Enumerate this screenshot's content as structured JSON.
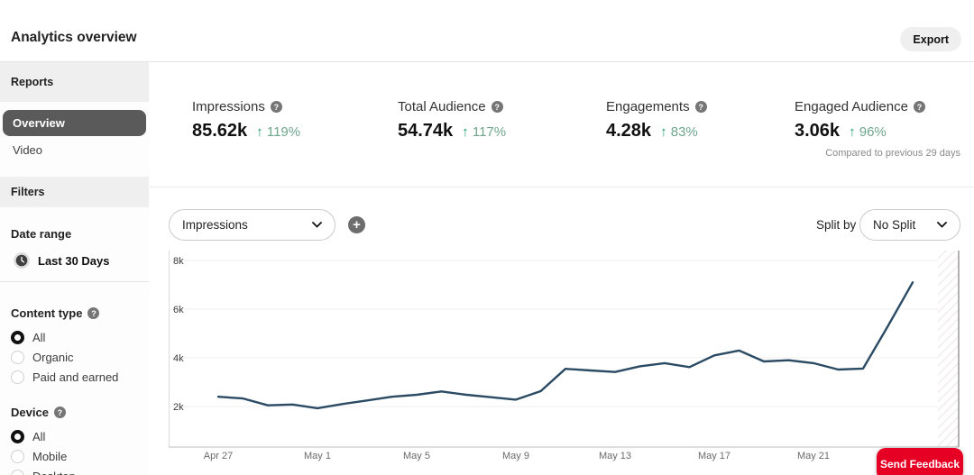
{
  "header": {
    "title": "Analytics overview",
    "export_label": "Export"
  },
  "sidebar": {
    "reports_header": "Reports",
    "report_items": [
      {
        "label": "Overview",
        "selected": true
      },
      {
        "label": "Video",
        "selected": false
      }
    ],
    "filters_header": "Filters",
    "date_range": {
      "label": "Date range",
      "value": "Last 30 Days"
    },
    "content_type": {
      "label": "Content type",
      "options": [
        {
          "label": "All",
          "selected": true
        },
        {
          "label": "Organic",
          "selected": false
        },
        {
          "label": "Paid and earned",
          "selected": false
        }
      ]
    },
    "device": {
      "label": "Device",
      "options": [
        {
          "label": "All",
          "selected": true
        },
        {
          "label": "Mobile",
          "selected": false
        },
        {
          "label": "Desktop",
          "selected": false,
          "partially_visible": true
        }
      ]
    }
  },
  "metrics": {
    "cards": [
      {
        "label": "Impressions",
        "value": "85.62k",
        "change": "119%"
      },
      {
        "label": "Total Audience",
        "value": "54.74k",
        "change": "117%"
      },
      {
        "label": "Engagements",
        "value": "4.28k",
        "change": "83%"
      },
      {
        "label": "Engaged Audience",
        "value": "3.06k",
        "change": "96%"
      }
    ],
    "comparison_note": "Compared to previous 29 days"
  },
  "controls": {
    "metric_select_value": "Impressions",
    "add_metric": "+",
    "split_by_label": "Split by",
    "split_select_value": "No Split"
  },
  "feedback_button": "Send Feedback",
  "colors": {
    "accent_red": "#e60023",
    "positive_green_arrow": "#1d9d74",
    "positive_green_text": "#6fa68c",
    "selected_pill_gray": "#5a5a5a"
  },
  "chart_data": {
    "type": "line",
    "series_name": "Impressions",
    "x": [
      "Apr 27",
      "Apr 28",
      "Apr 29",
      "Apr 30",
      "May 1",
      "May 2",
      "May 3",
      "May 4",
      "May 5",
      "May 6",
      "May 7",
      "May 8",
      "May 9",
      "May 10",
      "May 11",
      "May 12",
      "May 13",
      "May 14",
      "May 15",
      "May 16",
      "May 17",
      "May 18",
      "May 19",
      "May 20",
      "May 21",
      "May 22",
      "May 23",
      "May 24",
      "May 25"
    ],
    "values": [
      2400,
      2330,
      2050,
      2080,
      1930,
      2100,
      2250,
      2400,
      2480,
      2620,
      2480,
      2380,
      2280,
      2630,
      3550,
      3480,
      3420,
      3650,
      3780,
      3620,
      4100,
      4300,
      3850,
      3900,
      3780,
      3520,
      3560,
      5300,
      7100
    ],
    "x_tick_labels": [
      "Apr 27",
      "May 1",
      "May 5",
      "May 9",
      "May 13",
      "May 17",
      "May 21"
    ],
    "x_tick_indices": [
      0,
      4,
      8,
      12,
      16,
      20,
      24
    ],
    "y_ticks": [
      {
        "label": "2k",
        "value": 2000
      },
      {
        "label": "4k",
        "value": 4000
      },
      {
        "label": "6k",
        "value": 6000
      },
      {
        "label": "8k",
        "value": 8000
      }
    ],
    "ylabel": "",
    "xlabel": "",
    "grid": true,
    "legend": "none",
    "line_color": "#2b4a63",
    "pending_data_hatch_region": true
  }
}
